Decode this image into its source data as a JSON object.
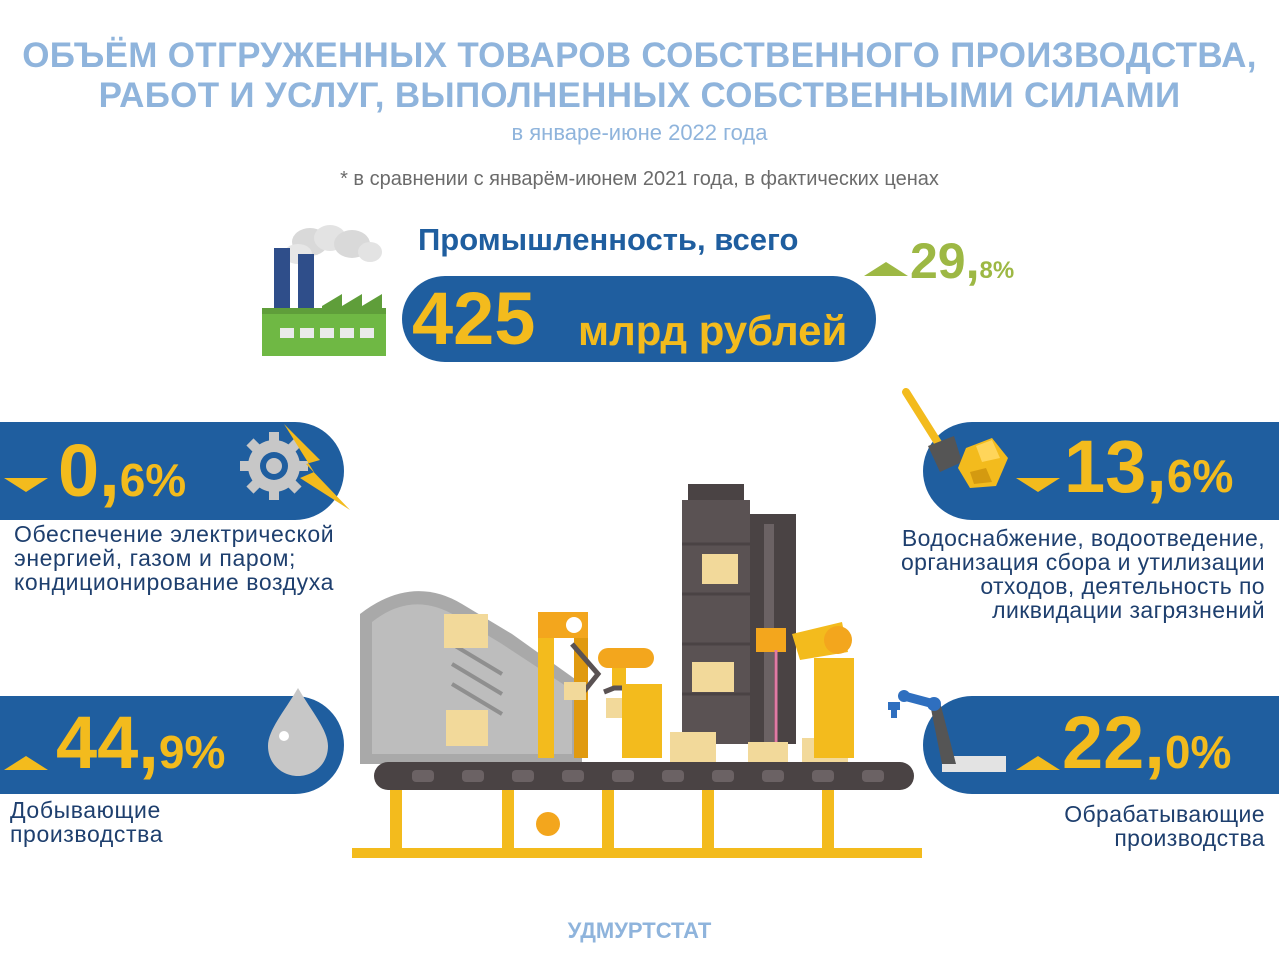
{
  "header": {
    "title_line1": "ОБЪЁМ ОТГРУЖЕННЫХ ТОВАРОВ СОБСТВЕННОГО ПРОИЗВОДСТВА,",
    "title_line2": "РАБОТ И УСЛУГ, ВЫПОЛНЕННЫХ СОБСТВЕННЫМИ СИЛАМИ",
    "period": "в январе-июне  2022 года",
    "note": "* в сравнении с январём-июнем 2021 года, в фактических ценах"
  },
  "total": {
    "label": "Промышленность, всего",
    "value": "425",
    "unit": "млрд рублей",
    "growth_int": "29,",
    "growth_dec": "8%",
    "direction": "up",
    "icon": "factory-icon"
  },
  "sectors": [
    {
      "pct_int": "0,",
      "pct_dec": "6%",
      "direction": "down",
      "icon": "gear-lightning-icon",
      "lines": [
        "Обеспечение электрической",
        "энергией, газом и паром;",
        "кондиционирование воздуха"
      ]
    },
    {
      "pct_int": "13,",
      "pct_dec": "6%",
      "direction": "down",
      "icon": "shovel-ore-icon",
      "lines": [
        "Водоснабжение, водоотведение,",
        "организация сбора и утилизации",
        "отходов, деятельность по",
        "ликвидации загрязнений"
      ]
    },
    {
      "pct_int": "44,",
      "pct_dec": "9%",
      "direction": "up",
      "icon": "oil-drop-icon",
      "lines": [
        "Добывающие",
        "производства"
      ]
    },
    {
      "pct_int": "22,",
      "pct_dec": "0%",
      "direction": "up",
      "icon": "robot-arm-icon",
      "lines": [
        "Обрабатывающие",
        "производства"
      ]
    }
  ],
  "colors": {
    "title": "#8fb4dc",
    "pill": "#1f5e9f",
    "accent": "#f3bb1d",
    "growth": "#9db844",
    "text": "#1e3f6e"
  },
  "footer": {
    "label": "УДМУРТСТАТ"
  }
}
